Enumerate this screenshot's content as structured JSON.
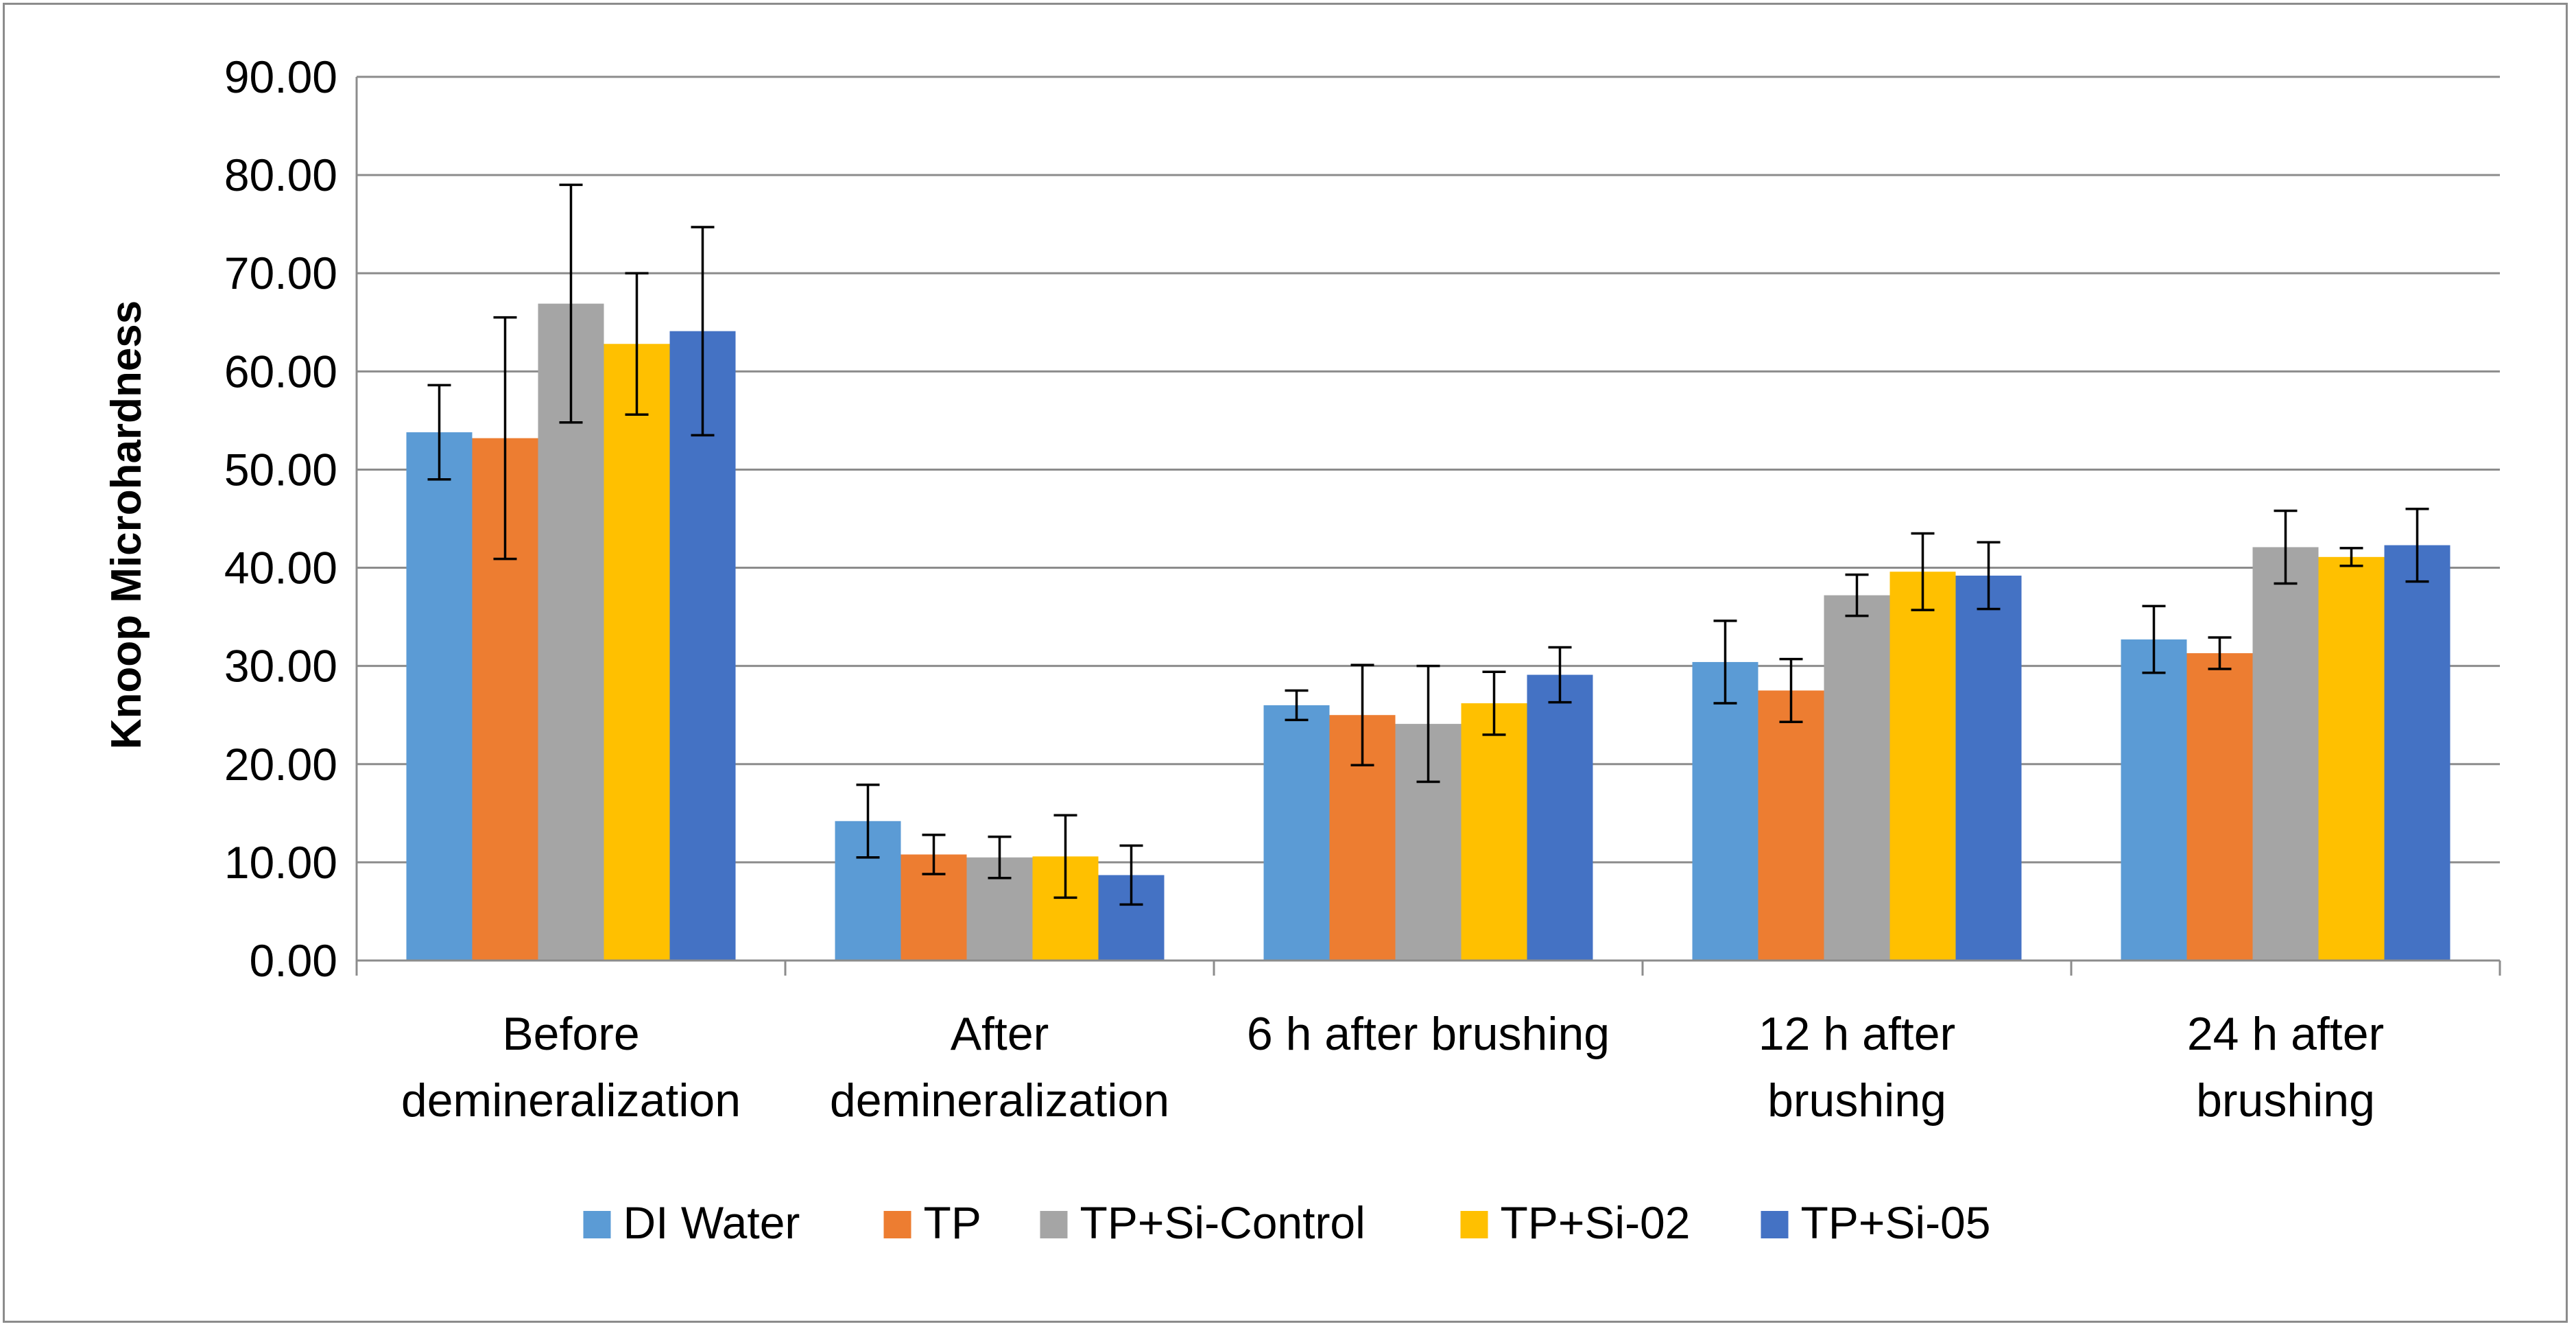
{
  "chart_data": {
    "type": "bar",
    "title": "",
    "xlabel": "",
    "ylabel": "Knoop Microhardness",
    "ylim": [
      0,
      90
    ],
    "ytick_step": 10,
    "ytick_labels": [
      "0.00",
      "10.00",
      "20.00",
      "30.00",
      "40.00",
      "50.00",
      "60.00",
      "70.00",
      "80.00",
      "90.00"
    ],
    "grid": true,
    "legend_position": "bottom",
    "categories": [
      [
        "Before",
        "demineralization"
      ],
      [
        "After",
        "demineralization"
      ],
      [
        "6 h after brushing"
      ],
      [
        "12 h after",
        "brushing"
      ],
      [
        "24 h after",
        "brushing"
      ]
    ],
    "series": [
      {
        "name": "DI Water",
        "color": "#5b9bd5",
        "values": [
          53.8,
          14.2,
          26.0,
          30.4,
          32.7
        ],
        "errors": [
          4.8,
          3.7,
          1.5,
          4.2,
          3.4
        ]
      },
      {
        "name": "TP",
        "color": "#ed7d31",
        "values": [
          53.2,
          10.8,
          25.0,
          27.5,
          31.3
        ],
        "errors": [
          12.3,
          2.0,
          5.1,
          3.2,
          1.6
        ]
      },
      {
        "name": "TP+Si-Control",
        "color": "#a5a5a5",
        "values": [
          66.9,
          10.5,
          24.1,
          37.2,
          42.1
        ],
        "errors": [
          12.1,
          2.1,
          5.9,
          2.1,
          3.7
        ]
      },
      {
        "name": "TP+Si-02",
        "color": "#ffc000",
        "values": [
          62.8,
          10.6,
          26.2,
          39.6,
          41.1
        ],
        "errors": [
          7.2,
          4.2,
          3.2,
          3.9,
          0.9
        ]
      },
      {
        "name": "TP+Si-05",
        "color": "#4472c4",
        "values": [
          64.1,
          8.7,
          29.1,
          39.2,
          42.3
        ],
        "errors": [
          10.6,
          3.0,
          2.8,
          3.4,
          3.7
        ]
      }
    ]
  }
}
